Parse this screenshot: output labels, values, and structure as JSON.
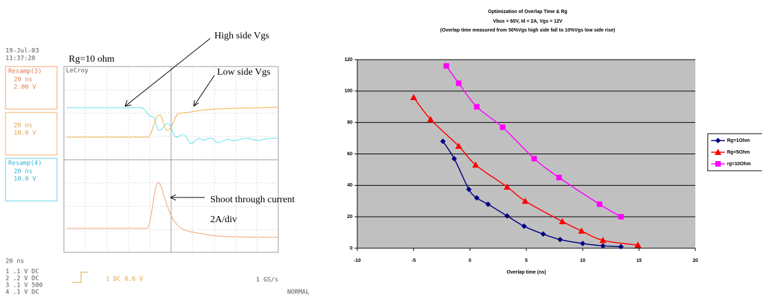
{
  "scope": {
    "date": "19-Jul-03",
    "time": "11:37:28",
    "rg_label": "Rg=10 ohm",
    "brand": "LeCroy",
    "annotations": [
      "High side Vgs",
      "Low side Vgs",
      "Shoot through current",
      "2A/div"
    ],
    "channels": [
      [
        "Resamp(3)",
        "20 ns",
        "2.00 V"
      ],
      [
        "20 ns",
        "10.0 V"
      ],
      [
        "Resamp(4)",
        "20 ns",
        "10.0 V"
      ]
    ],
    "timebase": "20 ns",
    "settings": [
      "1  .1  V  DC",
      "2  .2  V  DC",
      "3  .1  V  500",
      "4  .1  V  DC"
    ],
    "trigger": "1  DC 8.6 V",
    "sample_rate": "1 GS/s",
    "mode": "NORMAL"
  },
  "chart_data": {
    "type": "line",
    "title": "Optimization of Overlap Time & Rg",
    "subtitle": [
      "Vbus = 60V, Id = 2A, Vgs = 12V",
      "(Overlap time measured from 50%Vgs high side fall to 10%Vgs low side rise)"
    ],
    "x_label": "Overlap time (ns)",
    "xlim": [
      -10,
      20
    ],
    "xticks": [
      -10,
      -5,
      0,
      5,
      10,
      15,
      20
    ],
    "ylim": [
      0,
      120
    ],
    "yticks": [
      0,
      20,
      40,
      60,
      80,
      100,
      120
    ],
    "grid": true,
    "series": [
      {
        "name": "Rg=1Ohm",
        "color": "#000080",
        "marker": "diamond",
        "x": [
          -2.4,
          -1.4,
          -0.1,
          0.6,
          1.6,
          3.3,
          4.8,
          6.5,
          8,
          10,
          11.8,
          13.4
        ],
        "values": [
          68,
          57,
          37.5,
          32,
          28,
          20.5,
          14,
          9,
          5.5,
          3,
          1.5,
          1
        ]
      },
      {
        "name": "Rg=5Ohm",
        "color": "#ff0000",
        "marker": "triangle",
        "x": [
          -5,
          -3.5,
          -1,
          0.5,
          3.3,
          4.9,
          8.2,
          9.9,
          11.8,
          14.9
        ],
        "values": [
          96,
          82,
          65,
          53,
          39,
          30,
          17,
          11,
          5,
          2
        ]
      },
      {
        "name": "rg=10Ohm",
        "color": "#ff00ff",
        "marker": "square",
        "x": [
          -2.1,
          -1,
          0.6,
          2.9,
          5.7,
          7.9,
          11.5,
          13.4
        ],
        "values": [
          116,
          105,
          90,
          77,
          57,
          45,
          28,
          20
        ]
      }
    ]
  }
}
